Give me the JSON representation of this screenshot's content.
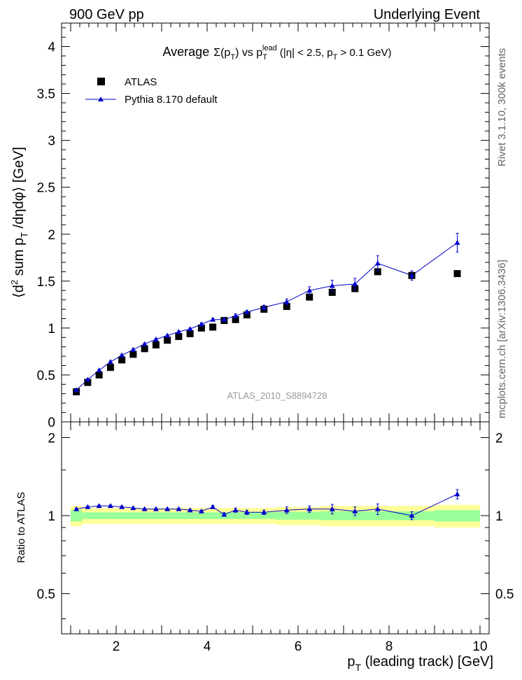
{
  "header": {
    "left": "900 GeV pp",
    "right": "Underlying Event"
  },
  "side_text": {
    "rivet": "Rivet 3.1.10,  300k events",
    "mcplots": "mcplots.cern.ch [arXiv:1306.3436]"
  },
  "chart_data": [
    {
      "type": "scatter",
      "title": "Average Σ(pT) vs pT lead (|η| < 2.5, pT > 0.1 GeV)",
      "title_parts": {
        "a": "Average",
        "b": "Σ(p",
        "c": "T",
        "d": ") vs p",
        "e": "T",
        "f": "lead",
        "g": " (|η| < 2.5, p",
        "h": "T",
        "i": " > 0.1 GeV)"
      },
      "ylabel": "⟨d² sum pT /dηdφ⟩ [GeV]",
      "ylabel_parts": {
        "a": "⟨d",
        "b": "2",
        "c": " sum p",
        "d": "T",
        "e": " /dηdφ⟩ [GeV]"
      },
      "watermark": "ATLAS_2010_S8894728",
      "xlim": [
        0.8,
        10.2
      ],
      "ylim": [
        0,
        4.25
      ],
      "yticks": [
        "0",
        "0.5",
        "1",
        "1.5",
        "2",
        "2.5",
        "3",
        "3.5",
        "4"
      ],
      "legend_placement": "top-left",
      "series": [
        {
          "name": "ATLAS",
          "color": "#000000",
          "marker": "square",
          "x": [
            1.125,
            1.375,
            1.625,
            1.875,
            2.125,
            2.375,
            2.625,
            2.875,
            3.125,
            3.375,
            3.625,
            3.875,
            4.125,
            4.375,
            4.625,
            4.875,
            5.25,
            5.75,
            6.25,
            6.75,
            7.25,
            7.75,
            8.5,
            9.5
          ],
          "y": [
            0.32,
            0.42,
            0.5,
            0.58,
            0.66,
            0.72,
            0.78,
            0.82,
            0.87,
            0.91,
            0.94,
            1.0,
            1.01,
            1.08,
            1.09,
            1.14,
            1.2,
            1.23,
            1.33,
            1.38,
            1.42,
            1.6,
            1.56,
            1.58
          ]
        },
        {
          "name": "Pythia 8.170 default",
          "color": "#0000cc",
          "marker": "triangle",
          "x": [
            1.125,
            1.375,
            1.625,
            1.875,
            2.125,
            2.375,
            2.625,
            2.875,
            3.125,
            3.375,
            3.625,
            3.875,
            4.125,
            4.375,
            4.625,
            4.875,
            5.25,
            5.75,
            6.25,
            6.75,
            7.25,
            7.75,
            8.5,
            9.5
          ],
          "y": [
            0.34,
            0.45,
            0.55,
            0.64,
            0.71,
            0.77,
            0.83,
            0.88,
            0.92,
            0.96,
            0.99,
            1.04,
            1.09,
            1.09,
            1.13,
            1.17,
            1.22,
            1.28,
            1.4,
            1.45,
            1.47,
            1.69,
            1.56,
            1.91
          ],
          "yerr": [
            0.01,
            0.01,
            0.01,
            0.01,
            0.01,
            0.01,
            0.01,
            0.01,
            0.01,
            0.01,
            0.01,
            0.015,
            0.015,
            0.015,
            0.02,
            0.02,
            0.025,
            0.03,
            0.04,
            0.06,
            0.06,
            0.08,
            0.05,
            0.1
          ]
        }
      ]
    },
    {
      "type": "scatter",
      "ylabel": "Ratio to ATLAS",
      "xlabel": "pT (leading track) [GeV]",
      "xlabel_parts": {
        "a": "p",
        "b": "T",
        "c": " (leading track) [GeV]"
      },
      "xlim": [
        0.8,
        10.2
      ],
      "ylim": [
        0.35,
        2.3
      ],
      "xticks": [
        "2",
        "4",
        "6",
        "8",
        "10"
      ],
      "yticks": [
        "0.5",
        "1",
        "2"
      ],
      "bands": {
        "yellow_color": "#ffff99",
        "green_color": "#99ff99",
        "x_edges": [
          1.0,
          1.25,
          1.5,
          1.75,
          2.0,
          2.25,
          2.5,
          2.75,
          3.0,
          3.25,
          3.5,
          3.75,
          4.0,
          4.25,
          4.5,
          4.75,
          5.0,
          5.5,
          6.0,
          6.5,
          7.0,
          7.5,
          8.0,
          9.0,
          10.0
        ],
        "yellow": [
          0.09,
          0.07,
          0.07,
          0.07,
          0.07,
          0.07,
          0.07,
          0.07,
          0.07,
          0.07,
          0.07,
          0.07,
          0.07,
          0.07,
          0.07,
          0.07,
          0.07,
          0.08,
          0.08,
          0.09,
          0.09,
          0.09,
          0.09,
          0.1
        ],
        "green": [
          0.05,
          0.03,
          0.03,
          0.03,
          0.03,
          0.03,
          0.03,
          0.03,
          0.03,
          0.03,
          0.03,
          0.03,
          0.03,
          0.03,
          0.03,
          0.03,
          0.03,
          0.035,
          0.035,
          0.04,
          0.04,
          0.04,
          0.04,
          0.05
        ]
      },
      "series": [
        {
          "name": "Pythia 8.170 default",
          "color": "#0000cc",
          "x": [
            1.125,
            1.375,
            1.625,
            1.875,
            2.125,
            2.375,
            2.625,
            2.875,
            3.125,
            3.375,
            3.625,
            3.875,
            4.125,
            4.375,
            4.625,
            4.875,
            5.25,
            5.75,
            6.25,
            6.75,
            7.25,
            7.75,
            8.5,
            9.5
          ],
          "y": [
            1.06,
            1.08,
            1.09,
            1.09,
            1.08,
            1.07,
            1.06,
            1.06,
            1.06,
            1.06,
            1.05,
            1.04,
            1.08,
            1.01,
            1.05,
            1.03,
            1.03,
            1.05,
            1.06,
            1.06,
            1.04,
            1.06,
            1.0,
            1.21
          ],
          "yerr": [
            0.01,
            0.01,
            0.01,
            0.01,
            0.01,
            0.01,
            0.01,
            0.01,
            0.01,
            0.01,
            0.01,
            0.01,
            0.015,
            0.015,
            0.02,
            0.02,
            0.02,
            0.03,
            0.03,
            0.045,
            0.04,
            0.05,
            0.035,
            0.05
          ]
        }
      ]
    }
  ]
}
